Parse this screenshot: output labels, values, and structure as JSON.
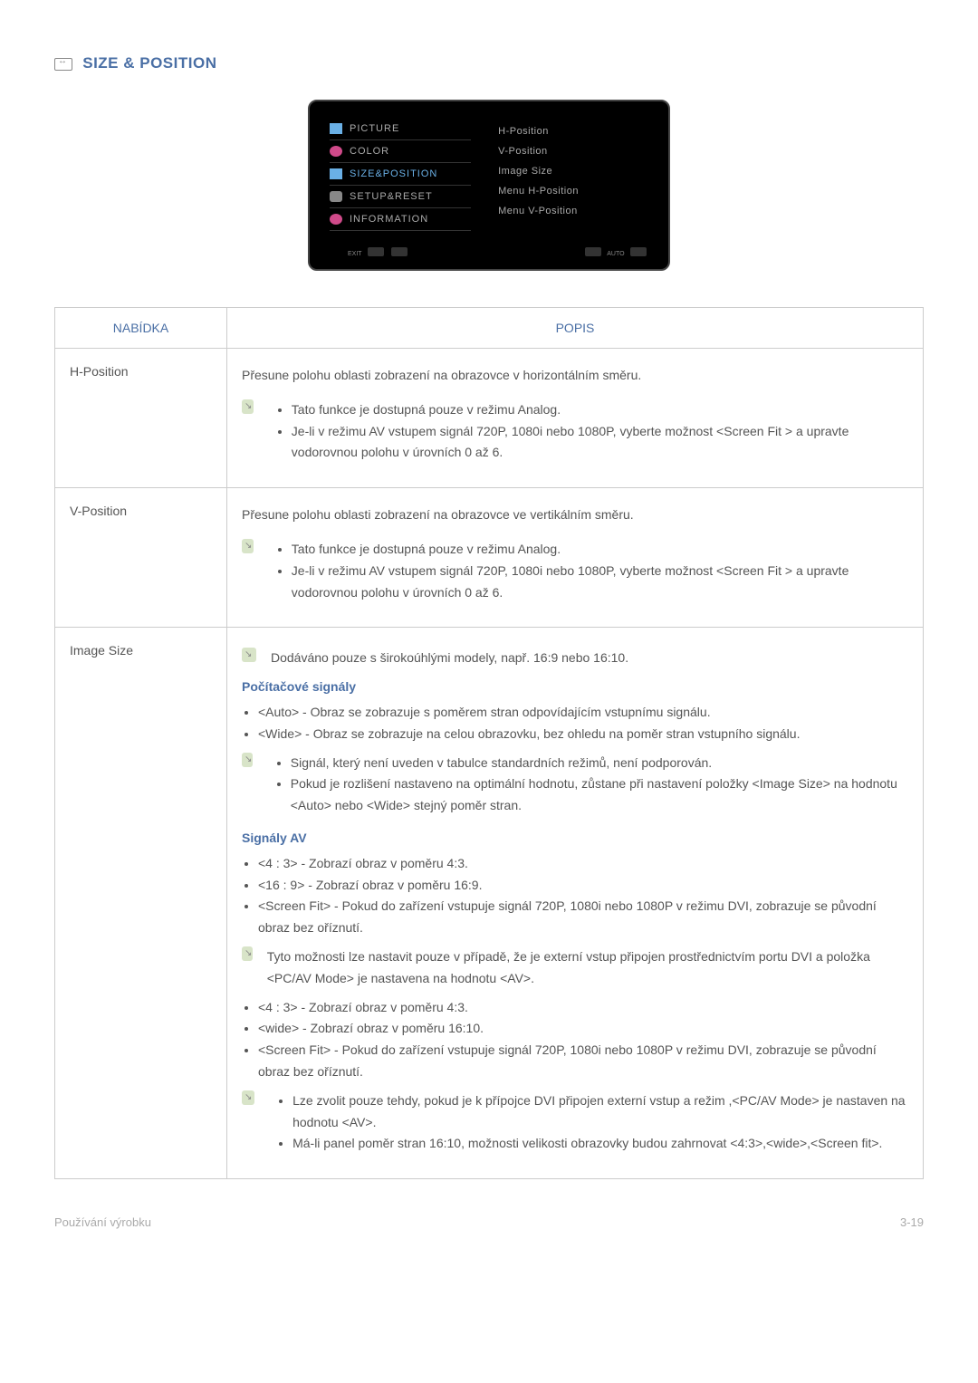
{
  "section_title": "SIZE & POSITION",
  "osd": {
    "left_items": [
      {
        "label": "PICTURE",
        "icon_class": "mi-picture",
        "selected": false
      },
      {
        "label": "COLOR",
        "icon_class": "mi-color",
        "selected": false
      },
      {
        "label": "SIZE&POSITION",
        "icon_class": "mi-sizepos",
        "selected": true
      },
      {
        "label": "SETUP&RESET",
        "icon_class": "mi-setup",
        "selected": false
      },
      {
        "label": "INFORMATION",
        "icon_class": "mi-info",
        "selected": false
      }
    ],
    "right_items": [
      "H-Position",
      "V-Position",
      "Image Size",
      "Menu H-Position",
      "Menu V-Position"
    ],
    "footer_left": "EXIT",
    "footer_right": "AUTO"
  },
  "table": {
    "header_menu": "NABÍDKA",
    "header_desc": "POPIS",
    "rows": [
      {
        "menu": "H-Position",
        "intro": "Přesune polohu oblasti zobrazení na obrazovce v horizontálním směru.",
        "note_items": [
          "Tato funkce je dostupná pouze v režimu Analog.",
          "Je-li v režimu AV vstupem signál 720P, 1080i nebo 1080P, vyberte možnost <Screen Fit > a upravte vodorovnou polohu v úrovních 0 až 6."
        ]
      },
      {
        "menu": "V-Position",
        "intro": "Přesune polohu oblasti zobrazení na obrazovce ve vertikálním směru.",
        "note_items": [
          "Tato funkce je dostupná pouze v režimu Analog.",
          "Je-li v režimu AV vstupem signál 720P, 1080i nebo 1080P, vyberte možnost <Screen Fit > a upravte vodorovnou polohu v úrovních 0 až 6."
        ]
      },
      {
        "menu": "Image Size",
        "top_note": "Dodáváno pouze s širokoúhlými modely, např. 16:9 nebo 16:10.",
        "sub1_head": "Počítačové signály",
        "sub1_items": [
          "<Auto> - Obraz se zobrazuje s poměrem stran odpovídajícím vstupnímu signálu.",
          "<Wide> - Obraz se zobrazuje na celou obrazovku, bez ohledu na poměr stran vstupního signálu."
        ],
        "sub1_note": [
          "Signál, který není uveden v tabulce standardních režimů, není podporován.",
          "Pokud je rozlišení nastaveno na optimální hodnotu, zůstane při nastavení položky <Image Size> na hodnotu <Auto> nebo <Wide> stejný poměr stran."
        ],
        "sub2_head": "Signály AV",
        "sub2_items": [
          "<4 : 3> - Zobrazí obraz v poměru 4:3.",
          "<16 : 9> - Zobrazí obraz v poměru 16:9.",
          "<Screen Fit> - Pokud do zařízení vstupuje signál 720P, 1080i nebo 1080P v režimu DVI, zobrazuje se původní obraz bez oříznutí."
        ],
        "sub2_note1": "Tyto možnosti lze nastavit pouze v případě, že je externí vstup připojen prostřednictvím portu DVI a položka <PC/AV Mode> je nastavena na hodnotu <AV>.",
        "sub3_items": [
          "<4 : 3> - Zobrazí obraz v poměru 4:3.",
          "<wide> - Zobrazí obraz v poměru 16:10.",
          "<Screen Fit> - Pokud do zařízení vstupuje signál 720P, 1080i nebo 1080P v režimu DVI, zobrazuje se původní obraz bez oříznutí."
        ],
        "sub3_note": [
          "Lze zvolit pouze tehdy, pokud je k přípojce DVI připojen externí vstup a režim ,<PC/AV Mode> je nastaven na hodnotu <AV>.",
          "Má-li panel poměr stran 16:10, možnosti velikosti obrazovky budou zahrnovat <4:3>,<wide>,<Screen fit>."
        ]
      }
    ]
  },
  "footer_left": "Používání výrobku",
  "footer_right": "3-19"
}
